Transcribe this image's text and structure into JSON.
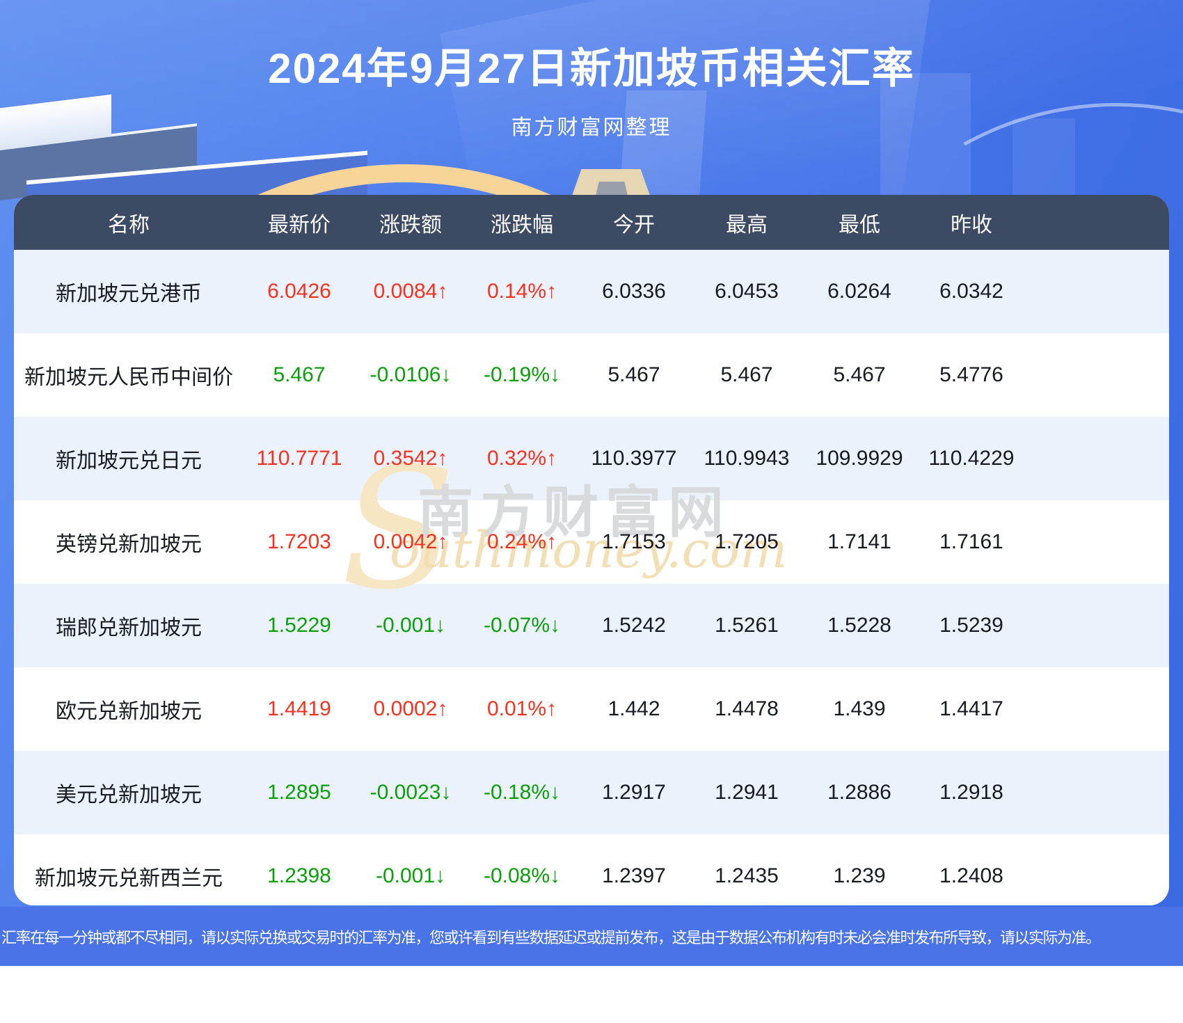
{
  "header": {
    "title": "2024年9月27日新加坡币相关汇率",
    "subtitle": "南方财富网整理"
  },
  "footer": {
    "note": "汇率在每一分钟或都不尽相同，请以实际兑换或交易时的汇率为准，您或许看到有些数据延迟或提前发布，这是由于数据公布机构有时未必会准时发布所导致，请以实际为准。"
  },
  "watermark": {
    "initial": "S",
    "cn": "南方财富网",
    "en": "outhmoney.com"
  },
  "colors": {
    "background_top": "#6190f1",
    "background_bottom": "#3a69e2",
    "table_header_bg": "#3d4a63",
    "row_alt_bg": "#ecf2fb",
    "up_red": "#f5321f",
    "down_green": "#0aa00a",
    "gold_arc": "#f7d498",
    "footer_bg": "#4a73e8"
  },
  "chart_data": {
    "type": "table",
    "title": "2024年9月27日新加坡币相关汇率",
    "columns": [
      "名称",
      "最新价",
      "涨跌额",
      "涨跌幅",
      "今开",
      "最高",
      "最低",
      "昨收"
    ],
    "column_keys": [
      "name",
      "last",
      "change",
      "change_pct",
      "open",
      "high",
      "low",
      "prev_close"
    ],
    "rows": [
      {
        "name": "新加坡元兑港币",
        "last": "6.0426",
        "change": "0.0084↑",
        "change_pct": "0.14%↑",
        "trend": "up",
        "open": "6.0336",
        "high": "6.0453",
        "low": "6.0264",
        "prev_close": "6.0342"
      },
      {
        "name": "新加坡元人民币中间价",
        "last": "5.467",
        "change": "-0.0106↓",
        "change_pct": "-0.19%↓",
        "trend": "down",
        "open": "5.467",
        "high": "5.467",
        "low": "5.467",
        "prev_close": "5.4776"
      },
      {
        "name": "新加坡元兑日元",
        "last": "110.7771",
        "change": "0.3542↑",
        "change_pct": "0.32%↑",
        "trend": "up",
        "open": "110.3977",
        "high": "110.9943",
        "low": "109.9929",
        "prev_close": "110.4229"
      },
      {
        "name": "英镑兑新加坡元",
        "last": "1.7203",
        "change": "0.0042↑",
        "change_pct": "0.24%↑",
        "trend": "up",
        "open": "1.7153",
        "high": "1.7205",
        "low": "1.7141",
        "prev_close": "1.7161"
      },
      {
        "name": "瑞郎兑新加坡元",
        "last": "1.5229",
        "change": "-0.001↓",
        "change_pct": "-0.07%↓",
        "trend": "down",
        "open": "1.5242",
        "high": "1.5261",
        "low": "1.5228",
        "prev_close": "1.5239"
      },
      {
        "name": "欧元兑新加坡元",
        "last": "1.4419",
        "change": "0.0002↑",
        "change_pct": "0.01%↑",
        "trend": "up",
        "open": "1.442",
        "high": "1.4478",
        "low": "1.439",
        "prev_close": "1.4417"
      },
      {
        "name": "美元兑新加坡元",
        "last": "1.2895",
        "change": "-0.0023↓",
        "change_pct": "-0.18%↓",
        "trend": "down",
        "open": "1.2917",
        "high": "1.2941",
        "low": "1.2886",
        "prev_close": "1.2918"
      },
      {
        "name": "新加坡元兑新西兰元",
        "last": "1.2398",
        "change": "-0.001↓",
        "change_pct": "-0.08%↓",
        "trend": "down",
        "open": "1.2397",
        "high": "1.2435",
        "low": "1.239",
        "prev_close": "1.2408"
      }
    ]
  }
}
